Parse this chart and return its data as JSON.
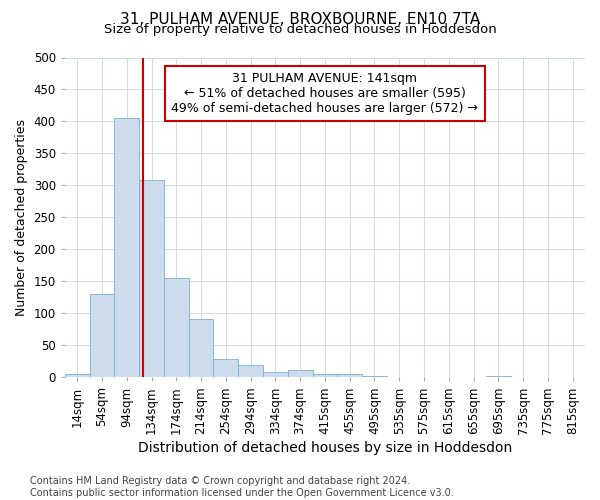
{
  "title": "31, PULHAM AVENUE, BROXBOURNE, EN10 7TA",
  "subtitle": "Size of property relative to detached houses in Hoddesdon",
  "xlabel": "Distribution of detached houses by size in Hoddesdon",
  "ylabel": "Number of detached properties",
  "footnote": "Contains HM Land Registry data © Crown copyright and database right 2024.\nContains public sector information licensed under the Open Government Licence v3.0.",
  "bin_labels": [
    "14sqm",
    "54sqm",
    "94sqm",
    "134sqm",
    "174sqm",
    "214sqm",
    "254sqm",
    "294sqm",
    "334sqm",
    "374sqm",
    "415sqm",
    "455sqm",
    "495sqm",
    "535sqm",
    "575sqm",
    "615sqm",
    "655sqm",
    "695sqm",
    "735sqm",
    "775sqm",
    "815sqm"
  ],
  "bar_heights": [
    5,
    130,
    405,
    308,
    155,
    92,
    28,
    19,
    8,
    11,
    5,
    5,
    2,
    0,
    0,
    0,
    0,
    2,
    0,
    0,
    0
  ],
  "bar_color": "#cddcec",
  "bar_edge_color": "#7aafd4",
  "vline_color": "#cc0000",
  "annotation_text": "31 PULHAM AVENUE: 141sqm\n← 51% of detached houses are smaller (595)\n49% of semi-detached houses are larger (572) →",
  "annotation_box_color": "#cc0000",
  "ylim": [
    0,
    500
  ],
  "yticks": [
    0,
    50,
    100,
    150,
    200,
    250,
    300,
    350,
    400,
    450,
    500
  ],
  "background_color": "#ffffff",
  "grid_color": "#c8d4e0",
  "title_fontsize": 11,
  "subtitle_fontsize": 9.5,
  "xlabel_fontsize": 10,
  "ylabel_fontsize": 9,
  "tick_fontsize": 8.5,
  "annotation_fontsize": 9,
  "footnote_fontsize": 7
}
